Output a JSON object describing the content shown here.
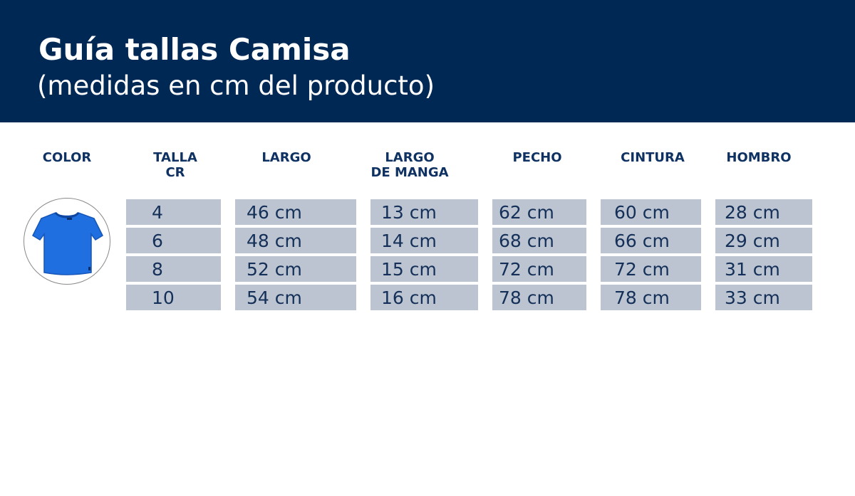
{
  "header": {
    "title": "Guía tallas Camisa",
    "subtitle": "(medidas en cm del producto)"
  },
  "table": {
    "headers": [
      [
        "COLOR"
      ],
      [
        "TALLA",
        "CR"
      ],
      [
        "LARGO"
      ],
      [
        "LARGO",
        "DE MANGA"
      ],
      [
        "PECHO"
      ],
      [
        "CINTURA"
      ],
      [
        "HOMBRO"
      ]
    ],
    "rows": [
      [
        "4",
        "46 cm",
        "13 cm",
        "62 cm",
        "60 cm",
        "28 cm"
      ],
      [
        "6",
        "48 cm",
        "14 cm",
        "68 cm",
        "66 cm",
        "29 cm"
      ],
      [
        "8",
        "52 cm",
        "15 cm",
        "72 cm",
        "72 cm",
        "31 cm"
      ],
      [
        "10",
        "54 cm",
        "16 cm",
        "78 cm",
        "78 cm",
        "33 cm"
      ]
    ]
  },
  "colors": {
    "header_bg": "#002855",
    "heading_text": "#0f3263",
    "cell_bg": "#bcc4d1",
    "cell_text": "#143058",
    "shirt": "#1f6fe0"
  },
  "icons": {
    "color_swatch": "blue-tshirt-icon"
  }
}
